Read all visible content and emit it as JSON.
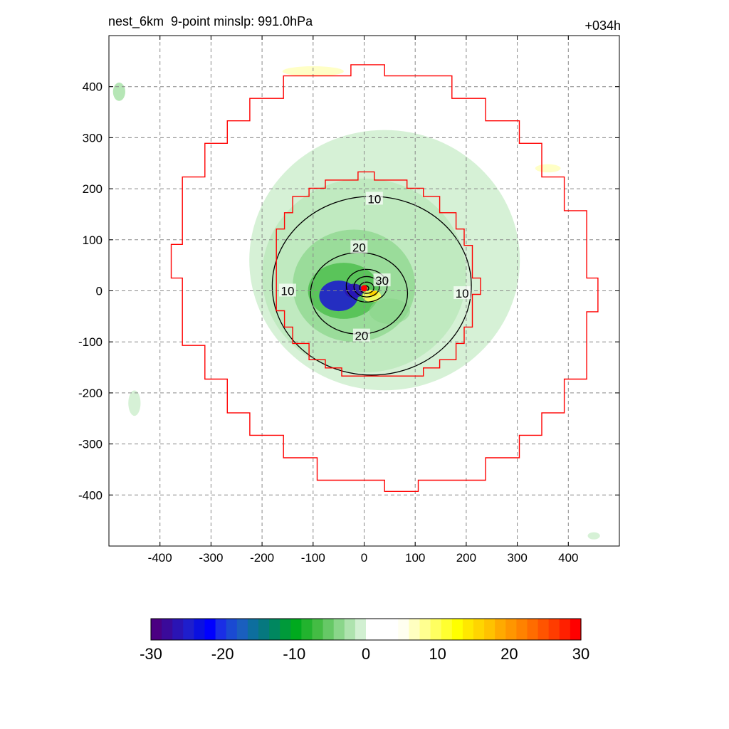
{
  "header": {
    "title": "nest_6km  9-point minslp: 991.0hPa",
    "time_label": "+034h"
  },
  "chart_data": {
    "type": "heatmap",
    "title": "nest_6km  9-point minslp: 991.0hPa",
    "time_label": "+034h",
    "xlim": [
      -500,
      500
    ],
    "ylim": [
      -500,
      500
    ],
    "xticks": [
      -400,
      -300,
      -200,
      -100,
      0,
      100,
      200,
      300,
      400
    ],
    "yticks": [
      -400,
      -300,
      -200,
      -100,
      0,
      100,
      200,
      300,
      400
    ],
    "grid": true,
    "contour_levels": [
      10,
      20,
      30
    ],
    "contour_labels": [
      {
        "text": "10",
        "x": 20,
        "y": 180
      },
      {
        "text": "20",
        "x": -10,
        "y": 85
      },
      {
        "text": "30",
        "x": 35,
        "y": 20
      },
      {
        "text": "10",
        "x": -150,
        "y": 0
      },
      {
        "text": "10",
        "x": 192,
        "y": -5
      },
      {
        "text": "20",
        "x": -5,
        "y": -88
      }
    ],
    "storm_center": [
      0,
      5
    ],
    "colorbar": {
      "min": -30,
      "max": 30,
      "ticks": [
        -30,
        -20,
        -10,
        0,
        10,
        20,
        30
      ],
      "colors": [
        "#4b0082",
        "#3a0a9a",
        "#2a14b4",
        "#1e1ecc",
        "#0a10e0",
        "#0000ff",
        "#1a2ee6",
        "#1a4ad2",
        "#1a5fbe",
        "#0d6e9e",
        "#06787f",
        "#00875f",
        "#009a3a",
        "#00aa1e",
        "#22b32e",
        "#44bc44",
        "#66c866",
        "#8ad68a",
        "#aee3ae",
        "#d2f0d2",
        "#ffffff",
        "#ffffff",
        "#ffffff",
        "#fffff0",
        "#ffffc0",
        "#ffff90",
        "#ffff60",
        "#ffff30",
        "#ffff00",
        "#ffe800",
        "#ffd500",
        "#ffc200",
        "#ffaa00",
        "#ff9600",
        "#ff8200",
        "#ff6c00",
        "#ff5400",
        "#ff3c00",
        "#ff2000",
        "#ff0000"
      ]
    }
  }
}
